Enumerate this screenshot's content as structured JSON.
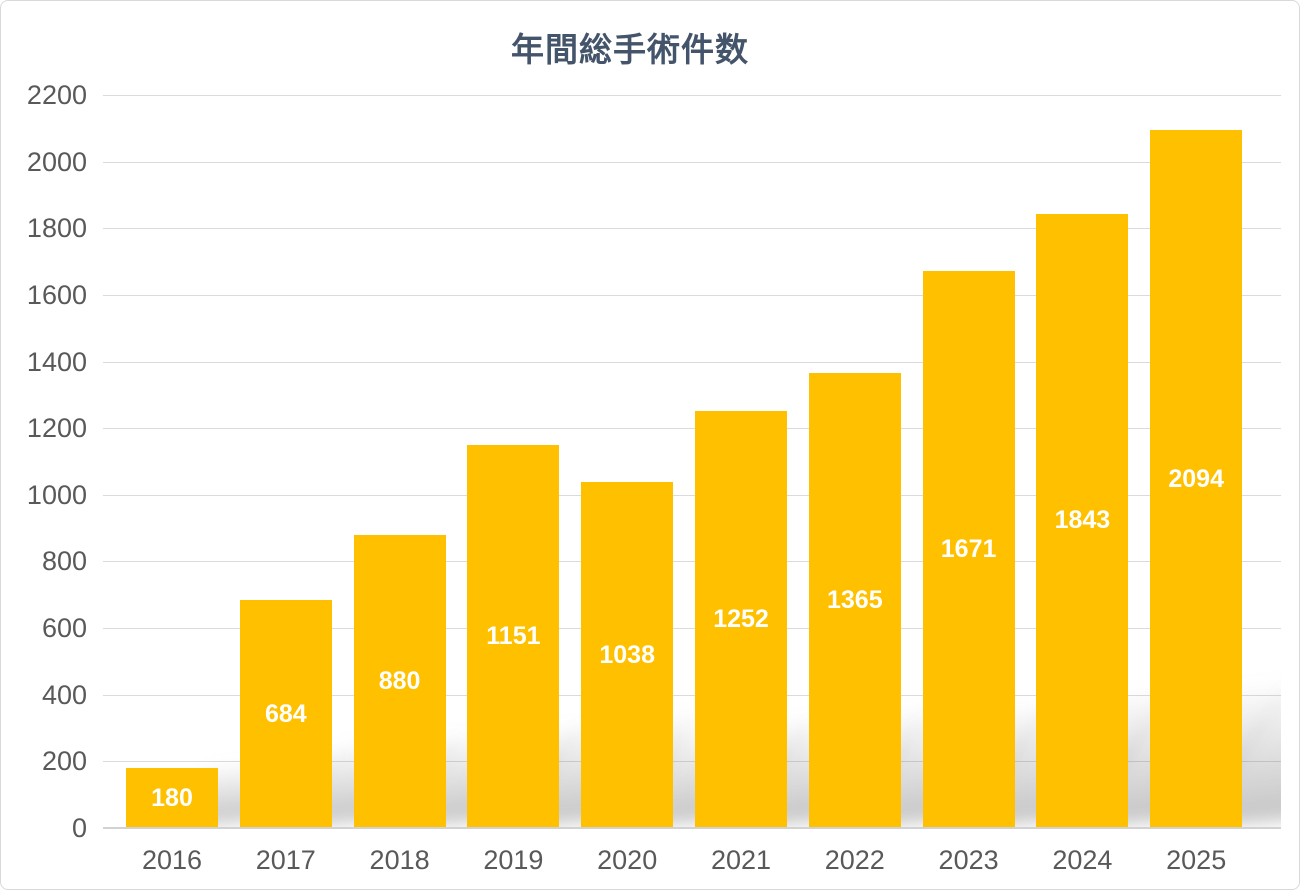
{
  "window": {
    "background_color": "#FFFFFF",
    "border_color": "#D9D9D9"
  },
  "chart_data": {
    "type": "bar",
    "title": "年間総手術件数",
    "categories": [
      "2016",
      "2017",
      "2018",
      "2019",
      "2020",
      "2021",
      "2022",
      "2023",
      "2024",
      "2025"
    ],
    "values": [
      180,
      684,
      880,
      1151,
      1038,
      1252,
      1365,
      1671,
      1843,
      2094
    ],
    "data_labels": [
      "180",
      "684",
      "880",
      "1151",
      "1038",
      "1252",
      "1365",
      "1671",
      "1843",
      "2094"
    ],
    "data_label_position": "center-inside",
    "xlabel": "",
    "ylabel": "",
    "ylim": [
      0,
      2200
    ],
    "yticks": [
      0,
      200,
      400,
      600,
      800,
      1000,
      1200,
      1400,
      1600,
      1800,
      2000,
      2200
    ],
    "grid": true,
    "legend": "none",
    "styles": {
      "bar_color": "#FFC000",
      "data_label_color": "#FFFFFF",
      "title_color": "#44546A",
      "tick_label_color": "#595959",
      "gridline_color": "#DBDBDB",
      "axis_line_color": "#D2D2D2",
      "bar_drop_shadow": "perspective-lower-right"
    }
  }
}
